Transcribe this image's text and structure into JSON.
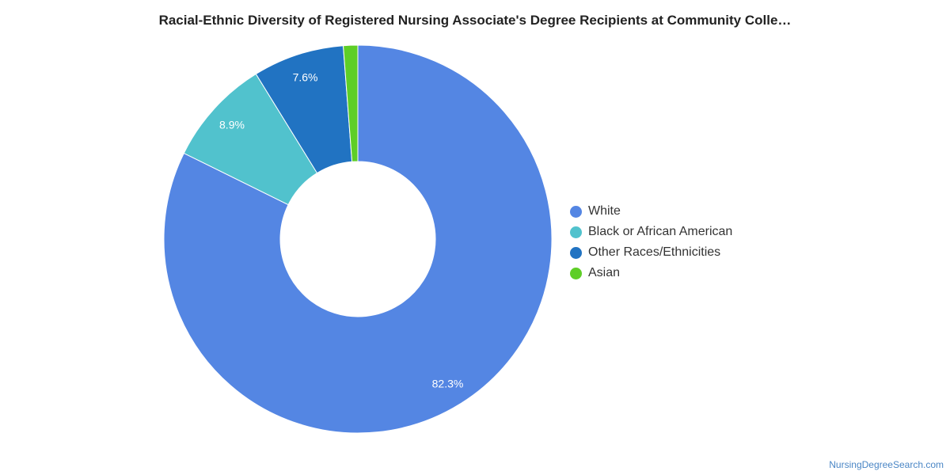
{
  "title": "Racial-Ethnic Diversity of Registered Nursing Associate's Degree Recipients at Community Colle…",
  "credit": "NursingDegreeSearch.com",
  "chart_data": {
    "type": "pie",
    "donut": true,
    "legend_position": "right",
    "categories": [
      "White",
      "Black or African American",
      "Other Races/Ethnicities",
      "Asian"
    ],
    "values": [
      82.3,
      8.9,
      7.6,
      1.2
    ],
    "data_labels": [
      "82.3%",
      "8.9%",
      "7.6%",
      ""
    ],
    "colors": [
      "#5486e3",
      "#51c2cd",
      "#2173c2",
      "#5ece27"
    ]
  },
  "legend": [
    {
      "label": "White",
      "color": "#5486e3"
    },
    {
      "label": "Black or African American",
      "color": "#51c2cd"
    },
    {
      "label": "Other Races/Ethnicities",
      "color": "#2173c2"
    },
    {
      "label": "Asian",
      "color": "#5ece27"
    }
  ]
}
